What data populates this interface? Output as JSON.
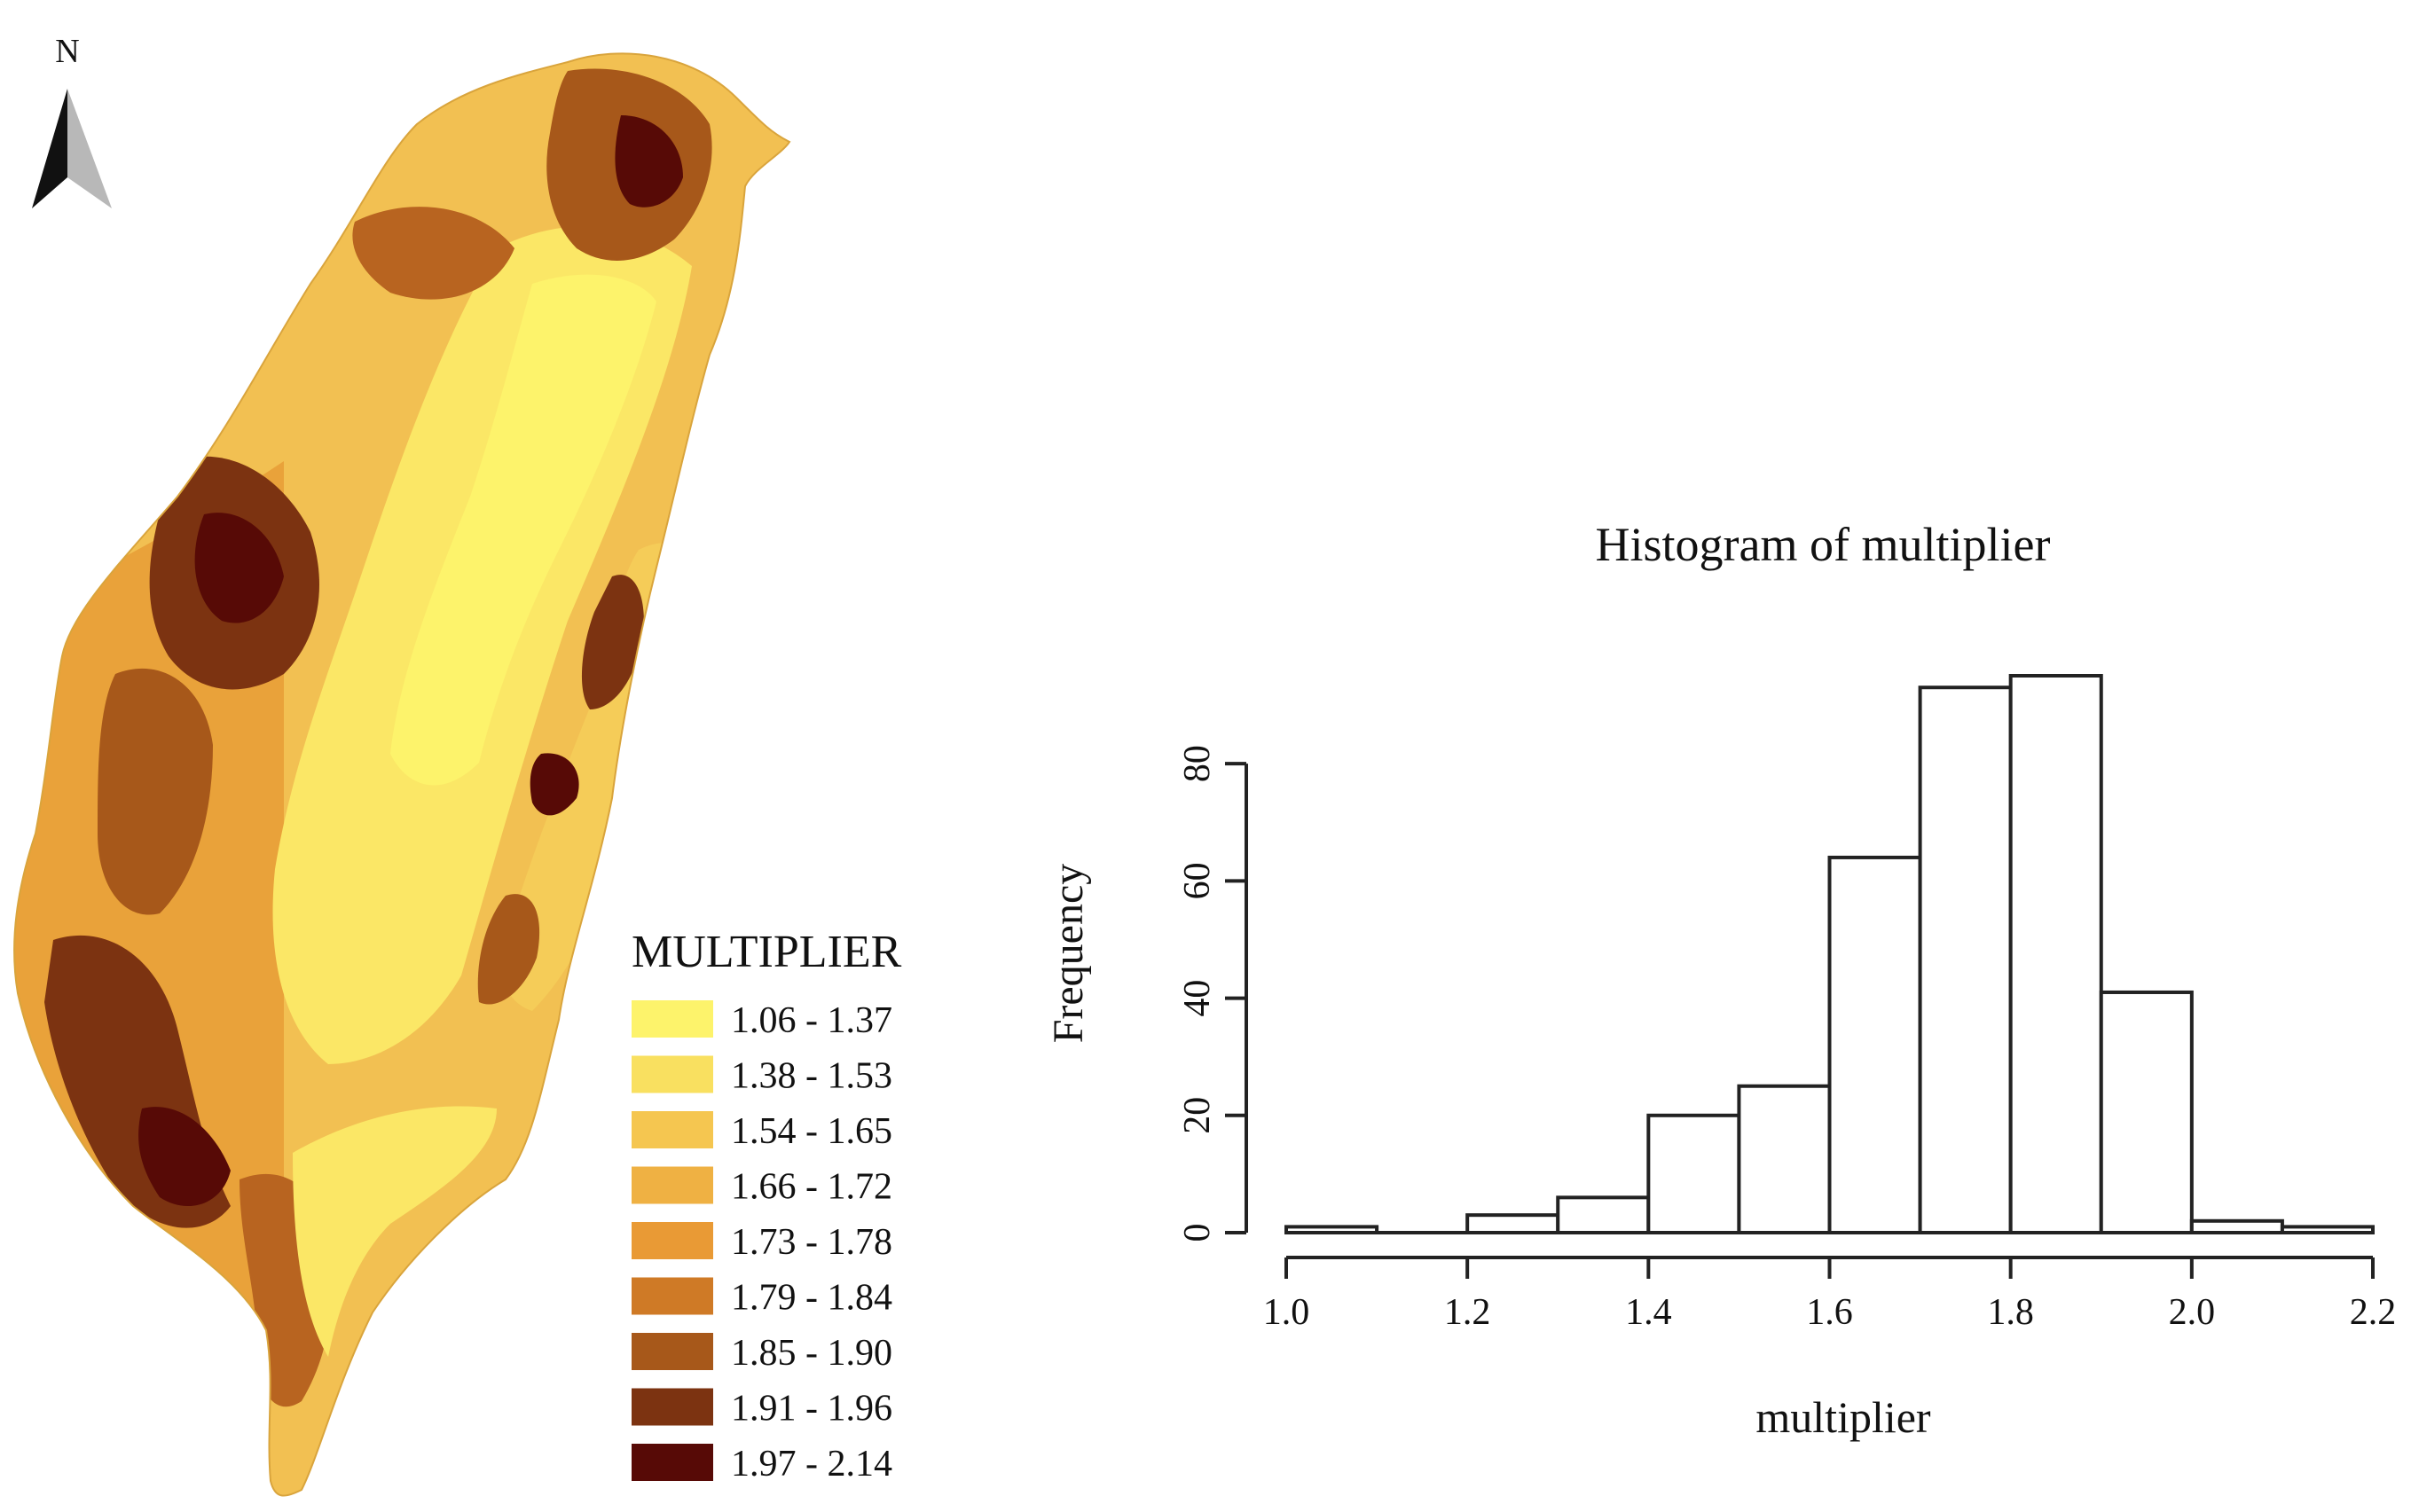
{
  "north_arrow": {
    "label": "N"
  },
  "map_legend": {
    "title": "MULTIPLIER",
    "classes": [
      {
        "label": "1.06 - 1.37",
        "color": "#fdf36b"
      },
      {
        "label": "1.38 - 1.53",
        "color": "#f9e060"
      },
      {
        "label": "1.54 - 1.65",
        "color": "#f5c650"
      },
      {
        "label": "1.66 - 1.72",
        "color": "#efb143"
      },
      {
        "label": "1.73 - 1.78",
        "color": "#e99a35"
      },
      {
        "label": "1.79 - 1.84",
        "color": "#cf7a26"
      },
      {
        "label": "1.85 - 1.90",
        "color": "#a7581a"
      },
      {
        "label": "1.91 - 1.96",
        "color": "#7c3311"
      },
      {
        "label": "1.97 - 2.14",
        "color": "#570a06"
      }
    ]
  },
  "chart_data": {
    "type": "bar",
    "title": "Histogram of multiplier",
    "xlabel": "multiplier",
    "ylabel": "Frequency",
    "bins": [
      {
        "from": 1.0,
        "to": 1.1,
        "count": 1
      },
      {
        "from": 1.1,
        "to": 1.2,
        "count": 0
      },
      {
        "from": 1.2,
        "to": 1.3,
        "count": 3
      },
      {
        "from": 1.3,
        "to": 1.4,
        "count": 6
      },
      {
        "from": 1.4,
        "to": 1.5,
        "count": 20
      },
      {
        "from": 1.5,
        "to": 1.6,
        "count": 25
      },
      {
        "from": 1.6,
        "to": 1.7,
        "count": 64
      },
      {
        "from": 1.7,
        "to": 1.8,
        "count": 93
      },
      {
        "from": 1.8,
        "to": 1.9,
        "count": 95
      },
      {
        "from": 1.9,
        "to": 2.0,
        "count": 41
      },
      {
        "from": 2.0,
        "to": 2.1,
        "count": 2
      },
      {
        "from": 2.1,
        "to": 2.2,
        "count": 1
      }
    ],
    "xlim": [
      1.0,
      2.2
    ],
    "ylim": [
      0,
      95
    ],
    "x_ticks": [
      "1.0",
      "1.2",
      "1.4",
      "1.6",
      "1.8",
      "2.0",
      "2.2"
    ],
    "y_ticks": [
      "0",
      "20",
      "40",
      "60",
      "80"
    ],
    "grid": false
  }
}
